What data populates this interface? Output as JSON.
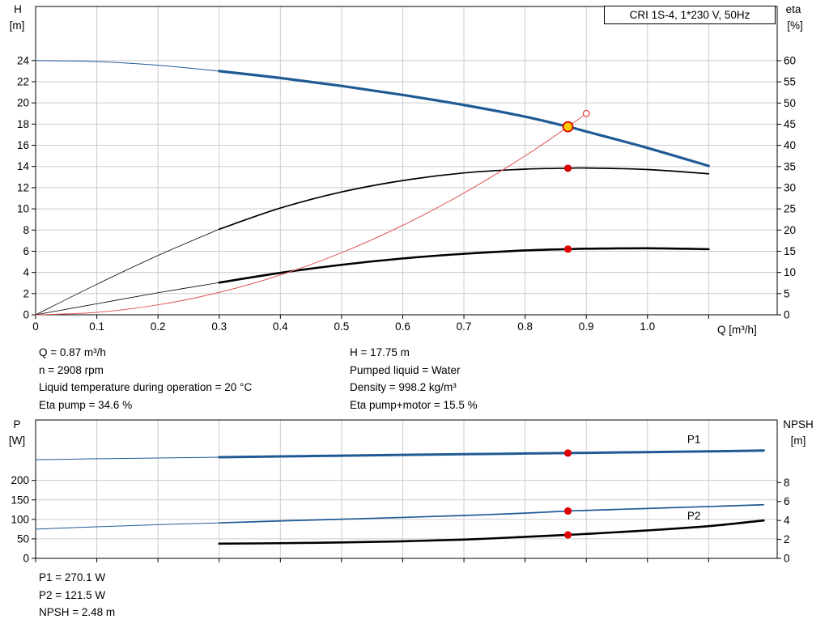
{
  "header": {
    "title_box": "CRI 1S-4, 1*230 V, 50Hz"
  },
  "info_top_left": [
    "Q = 0.87 m³/h",
    "n = 2908 rpm",
    "Liquid temperature during operation = 20 °C",
    "Eta pump = 34.6 %"
  ],
  "info_top_right": [
    "H = 17.75 m",
    "Pumped liquid = Water",
    "Density = 998.2 kg/m³",
    "Eta pump+motor = 15.5 %"
  ],
  "info_bottom": [
    "P1 = 270.1 W",
    "P2 = 121.5 W",
    "NPSH = 2.48 m"
  ],
  "operating_point": {
    "Q_m3h": 0.87,
    "H_m": 17.75,
    "n_rpm": 2908,
    "temperature_C": 20,
    "eta_pump_pct": 34.6,
    "eta_pump_motor_pct": 15.5,
    "pumped_liquid": "Water",
    "density_kg_m3": 998.2,
    "P1_W": 270.1,
    "P2_W": 121.5,
    "NPSH_m": 2.48
  },
  "colors": {
    "curve_blue": "#205a94",
    "curve_black": "#000000",
    "system_red": "#e15656",
    "dot_red": "#dd0000",
    "duty_yellow": "#ffcc00",
    "grid": "#cccccc",
    "axis": "#000000"
  },
  "chart_data": [
    {
      "id": "head-eta-chart",
      "type": "line",
      "title": "CRI 1S-4, 1*230 V, 50Hz",
      "x_axis": {
        "label": "Q [m³/h]",
        "min": 0,
        "max": 1.212,
        "tick_values": [
          0,
          0.1,
          0.2,
          0.3,
          0.4,
          0.5,
          0.6,
          0.7,
          0.8,
          0.9,
          1.0,
          1.1
        ],
        "tick_labels": [
          "0",
          "0.1",
          "0.2",
          "0.3",
          "0.4",
          "0.5",
          "0.6",
          "0.7",
          "0.8",
          "0.9",
          "1.0",
          ""
        ]
      },
      "y_left": {
        "label": [
          "H",
          "[m]"
        ],
        "min": 0,
        "max": 29.1,
        "tick_values": [
          0,
          2,
          4,
          6,
          8,
          10,
          12,
          14,
          16,
          18,
          20,
          22,
          24
        ],
        "tick_labels": [
          "0",
          "2",
          "4",
          "6",
          "8",
          "10",
          "12",
          "14",
          "16",
          "18",
          "20",
          "22",
          "24"
        ]
      },
      "y_right": {
        "label": [
          "eta",
          "[%]"
        ],
        "min": 0,
        "max": 72.8,
        "tick_values": [
          0,
          5,
          10,
          15,
          20,
          25,
          30,
          35,
          40,
          45,
          50,
          55,
          60
        ],
        "tick_labels": [
          "0",
          "5",
          "10",
          "15",
          "20",
          "25",
          "30",
          "35",
          "40",
          "45",
          "50",
          "55",
          "60"
        ]
      },
      "series": [
        {
          "name": "head-curve-low",
          "axis": "left",
          "color": "#205a94",
          "width": 1,
          "points": [
            [
              0,
              24.0
            ],
            [
              0.1,
              23.9
            ],
            [
              0.2,
              23.55
            ],
            [
              0.3,
              23.0
            ]
          ]
        },
        {
          "name": "head-curve",
          "axis": "left",
          "color": "#205a94",
          "width": 3.2,
          "points": [
            [
              0.3,
              23.0
            ],
            [
              0.4,
              22.35
            ],
            [
              0.5,
              21.6
            ],
            [
              0.6,
              20.75
            ],
            [
              0.7,
              19.8
            ],
            [
              0.8,
              18.7
            ],
            [
              0.87,
              17.75
            ],
            [
              0.9,
              17.3
            ],
            [
              1.0,
              15.75
            ],
            [
              1.1,
              14.05
            ]
          ]
        },
        {
          "name": "eta-pump-curve-low",
          "axis": "right",
          "color": "#000000",
          "width": 0.8,
          "points": [
            [
              0,
              0
            ],
            [
              0.1,
              7.2
            ],
            [
              0.2,
              14.0
            ],
            [
              0.3,
              20.2
            ]
          ]
        },
        {
          "name": "eta-pump-curve",
          "axis": "right",
          "color": "#000000",
          "width": 1.7,
          "points": [
            [
              0.3,
              20.2
            ],
            [
              0.4,
              25.2
            ],
            [
              0.5,
              29.0
            ],
            [
              0.6,
              31.7
            ],
            [
              0.7,
              33.5
            ],
            [
              0.8,
              34.4
            ],
            [
              0.87,
              34.6
            ],
            [
              0.9,
              34.65
            ],
            [
              1.0,
              34.3
            ],
            [
              1.1,
              33.3
            ]
          ]
        },
        {
          "name": "eta-pump-motor-curve-low",
          "axis": "right",
          "color": "#000000",
          "width": 0.8,
          "points": [
            [
              0,
              0
            ],
            [
              0.1,
              2.6
            ],
            [
              0.2,
              5.2
            ],
            [
              0.3,
              7.6
            ]
          ]
        },
        {
          "name": "eta-pump-motor-curve",
          "axis": "right",
          "color": "#000000",
          "width": 2.6,
          "points": [
            [
              0.3,
              7.6
            ],
            [
              0.4,
              9.9
            ],
            [
              0.5,
              11.8
            ],
            [
              0.6,
              13.3
            ],
            [
              0.7,
              14.4
            ],
            [
              0.8,
              15.2
            ],
            [
              0.87,
              15.5
            ],
            [
              0.9,
              15.6
            ],
            [
              1.0,
              15.7
            ],
            [
              1.1,
              15.5
            ]
          ]
        },
        {
          "name": "system-curve",
          "axis": "left",
          "color": "#e15656",
          "width": 1,
          "points": [
            [
              0,
              0
            ],
            [
              0.1,
              0.23
            ],
            [
              0.2,
              0.94
            ],
            [
              0.3,
              2.11
            ],
            [
              0.4,
              3.75
            ],
            [
              0.5,
              5.86
            ],
            [
              0.6,
              8.44
            ],
            [
              0.7,
              11.49
            ],
            [
              0.8,
              15.0
            ],
            [
              0.87,
              17.75
            ],
            [
              0.9,
              19.0
            ]
          ]
        }
      ],
      "markers": [
        {
          "name": "system-curve-end-marker",
          "axis": "left",
          "x": 0.9,
          "y": 19.0,
          "r": 3.8,
          "fill": "#ffffff",
          "stroke": "#e15656",
          "stroke_width": 1.4
        },
        {
          "name": "duty-point",
          "axis": "left",
          "x": 0.87,
          "y": 17.75,
          "r": 6,
          "fill": "#ffcc00",
          "stroke": "#dd0000",
          "stroke_width": 1.7
        },
        {
          "name": "eta-pump-point",
          "axis": "right",
          "x": 0.87,
          "y": 34.6,
          "r": 4.6,
          "fill": "#dd0000"
        },
        {
          "name": "eta-pump-motor-point",
          "axis": "right",
          "x": 0.87,
          "y": 15.5,
          "r": 4.6,
          "fill": "#dd0000"
        }
      ]
    },
    {
      "id": "power-npsh-chart",
      "type": "line",
      "x_axis": {
        "label": "",
        "min": 0,
        "max": 1.212,
        "tick_values": [
          0,
          0.1,
          0.2,
          0.3,
          0.4,
          0.5,
          0.6,
          0.7,
          0.8,
          0.9,
          1.0,
          1.1
        ],
        "tick_labels": [
          "",
          "",
          "",
          "",
          "",
          "",
          "",
          "",
          "",
          "",
          "",
          ""
        ]
      },
      "y_left": {
        "label": [
          "P",
          "[W]"
        ],
        "min": 0,
        "max": 355,
        "tick_values": [
          0,
          50,
          100,
          150,
          200
        ],
        "tick_labels": [
          "0",
          "50",
          "100",
          "150",
          "200"
        ]
      },
      "y_right": {
        "label": [
          "NPSH",
          "[m]"
        ],
        "min": 0,
        "max": 14.6,
        "tick_values": [
          0,
          2,
          4,
          6,
          8
        ],
        "tick_labels": [
          "0",
          "2",
          "4",
          "6",
          "8"
        ]
      },
      "series": [
        {
          "name": "p1-curve-low",
          "axis": "left",
          "color": "#205a94",
          "width": 1,
          "points": [
            [
              0,
              253
            ],
            [
              0.1,
              255.5
            ],
            [
              0.2,
              257.5
            ],
            [
              0.3,
              259.5
            ]
          ]
        },
        {
          "name": "p1-curve",
          "axis": "left",
          "color": "#205a94",
          "width": 3,
          "points": [
            [
              0.3,
              259.5
            ],
            [
              0.4,
              261.5
            ],
            [
              0.5,
              263.5
            ],
            [
              0.6,
              265.5
            ],
            [
              0.7,
              267.2
            ],
            [
              0.8,
              269
            ],
            [
              0.87,
              270.1
            ],
            [
              0.9,
              270.7
            ],
            [
              1.0,
              272.5
            ],
            [
              1.1,
              274.5
            ],
            [
              1.19,
              276.5
            ]
          ],
          "label": {
            "text": "P1",
            "x": 1.065,
            "y": 296
          }
        },
        {
          "name": "p2-curve-low",
          "axis": "left",
          "color": "#205a94",
          "width": 1,
          "points": [
            [
              0,
              75
            ],
            [
              0.1,
              81
            ],
            [
              0.2,
              86.5
            ],
            [
              0.3,
              91
            ]
          ]
        },
        {
          "name": "p2-curve",
          "axis": "left",
          "color": "#205a94",
          "width": 1.7,
          "points": [
            [
              0.3,
              91
            ],
            [
              0.4,
              96
            ],
            [
              0.5,
              100.5
            ],
            [
              0.6,
              105
            ],
            [
              0.7,
              110
            ],
            [
              0.8,
              116
            ],
            [
              0.87,
              121.5
            ],
            [
              0.9,
              123
            ],
            [
              1.0,
              128
            ],
            [
              1.1,
              133
            ],
            [
              1.19,
              137.5
            ]
          ],
          "label": {
            "text": "P2",
            "x": 1.065,
            "y": 100
          }
        },
        {
          "name": "npsh-curve",
          "axis": "right",
          "color": "#000000",
          "width": 2.6,
          "points": [
            [
              0.3,
              1.55
            ],
            [
              0.4,
              1.6
            ],
            [
              0.5,
              1.68
            ],
            [
              0.6,
              1.8
            ],
            [
              0.7,
              1.98
            ],
            [
              0.8,
              2.27
            ],
            [
              0.87,
              2.48
            ],
            [
              0.9,
              2.58
            ],
            [
              1.0,
              2.95
            ],
            [
              1.1,
              3.4
            ],
            [
              1.19,
              4.0
            ]
          ]
        }
      ],
      "markers": [
        {
          "name": "p1-point",
          "axis": "left",
          "x": 0.87,
          "y": 270.1,
          "r": 4.6,
          "fill": "#dd0000"
        },
        {
          "name": "p2-point",
          "axis": "left",
          "x": 0.87,
          "y": 121.5,
          "r": 4.6,
          "fill": "#dd0000"
        },
        {
          "name": "npsh-point",
          "axis": "right",
          "x": 0.87,
          "y": 2.48,
          "r": 4.6,
          "fill": "#dd0000"
        }
      ]
    }
  ]
}
